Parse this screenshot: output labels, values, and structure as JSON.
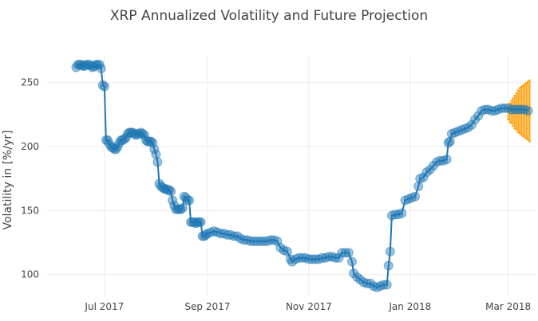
{
  "chart_data": {
    "type": "scatter",
    "title": "XRP Annualized Volatility and Future Projection",
    "xlabel": "",
    "ylabel": "Volatility in [%/yr]",
    "y_ticks": [
      100,
      150,
      200,
      250
    ],
    "ylim": [
      83,
      271
    ],
    "xlim": [
      "2017-05-27",
      "2018-03-18"
    ],
    "x_ticks": [
      {
        "date": "2017-07-01",
        "label": "Jul 2017"
      },
      {
        "date": "2017-09-01",
        "label": "Sep 2017"
      },
      {
        "date": "2017-11-01",
        "label": "Nov 2017"
      },
      {
        "date": "2018-01-01",
        "label": "Jan 2018"
      },
      {
        "date": "2018-03-01",
        "label": "Mar 2018"
      }
    ],
    "grid": true,
    "legend": "none",
    "colors": {
      "series": "#1f77b4",
      "projection": "#ff9f0a"
    },
    "series": [
      {
        "type": "line+markers",
        "points": [
          [
            "2017-06-14",
            262
          ],
          [
            "2017-06-15",
            264
          ],
          [
            "2017-06-16",
            264
          ],
          [
            "2017-06-17",
            264
          ],
          [
            "2017-06-18",
            263
          ],
          [
            "2017-06-19",
            263
          ],
          [
            "2017-06-20",
            264
          ],
          [
            "2017-06-21",
            264
          ],
          [
            "2017-06-22",
            264
          ],
          [
            "2017-06-23",
            263
          ],
          [
            "2017-06-24",
            262
          ],
          [
            "2017-06-25",
            263
          ],
          [
            "2017-06-26",
            264
          ],
          [
            "2017-06-27",
            264
          ],
          [
            "2017-06-28",
            264
          ],
          [
            "2017-06-29",
            261
          ],
          [
            "2017-06-30",
            248
          ],
          [
            "2017-07-01",
            247
          ],
          [
            "2017-07-02",
            205
          ],
          [
            "2017-07-03",
            205
          ],
          [
            "2017-07-04",
            202
          ],
          [
            "2017-07-05",
            200
          ],
          [
            "2017-07-06",
            199
          ],
          [
            "2017-07-07",
            198
          ],
          [
            "2017-07-08",
            198
          ],
          [
            "2017-07-09",
            200
          ],
          [
            "2017-07-10",
            203
          ],
          [
            "2017-07-11",
            205
          ],
          [
            "2017-07-12",
            205
          ],
          [
            "2017-07-13",
            206
          ],
          [
            "2017-07-14",
            207
          ],
          [
            "2017-07-15",
            210
          ],
          [
            "2017-07-16",
            211
          ],
          [
            "2017-07-17",
            211
          ],
          [
            "2017-07-18",
            211
          ],
          [
            "2017-07-19",
            210
          ],
          [
            "2017-07-20",
            209
          ],
          [
            "2017-07-21",
            210
          ],
          [
            "2017-07-22",
            210
          ],
          [
            "2017-07-23",
            211
          ],
          [
            "2017-07-24",
            210
          ],
          [
            "2017-07-25",
            209
          ],
          [
            "2017-07-26",
            205
          ],
          [
            "2017-07-27",
            204
          ],
          [
            "2017-07-28",
            204
          ],
          [
            "2017-07-29",
            204
          ],
          [
            "2017-07-30",
            203
          ],
          [
            "2017-07-31",
            198
          ],
          [
            "2017-08-01",
            194
          ],
          [
            "2017-08-02",
            188
          ],
          [
            "2017-08-03",
            171
          ],
          [
            "2017-08-04",
            169
          ],
          [
            "2017-08-05",
            168
          ],
          [
            "2017-08-06",
            167
          ],
          [
            "2017-08-07",
            167
          ],
          [
            "2017-08-08",
            166
          ],
          [
            "2017-08-09",
            166
          ],
          [
            "2017-08-10",
            165
          ],
          [
            "2017-08-11",
            158
          ],
          [
            "2017-08-12",
            154
          ],
          [
            "2017-08-13",
            151
          ],
          [
            "2017-08-14",
            151
          ],
          [
            "2017-08-15",
            151
          ],
          [
            "2017-08-16",
            151
          ],
          [
            "2017-08-17",
            152
          ],
          [
            "2017-08-18",
            161
          ],
          [
            "2017-08-19",
            160
          ],
          [
            "2017-08-20",
            158
          ],
          [
            "2017-08-21",
            158
          ],
          [
            "2017-08-22",
            141
          ],
          [
            "2017-08-23",
            141
          ],
          [
            "2017-08-24",
            141
          ],
          [
            "2017-08-25",
            140
          ],
          [
            "2017-08-26",
            141
          ],
          [
            "2017-08-27",
            141
          ],
          [
            "2017-08-28",
            141
          ],
          [
            "2017-08-29",
            130
          ],
          [
            "2017-08-30",
            130
          ],
          [
            "2017-08-31",
            131
          ],
          [
            "2017-09-01",
            132
          ],
          [
            "2017-09-03",
            133
          ],
          [
            "2017-09-05",
            134
          ],
          [
            "2017-09-07",
            133
          ],
          [
            "2017-09-09",
            132
          ],
          [
            "2017-09-11",
            132
          ],
          [
            "2017-09-13",
            131
          ],
          [
            "2017-09-15",
            131
          ],
          [
            "2017-09-17",
            130
          ],
          [
            "2017-09-19",
            130
          ],
          [
            "2017-09-21",
            128
          ],
          [
            "2017-09-23",
            127
          ],
          [
            "2017-09-25",
            127
          ],
          [
            "2017-09-27",
            126
          ],
          [
            "2017-09-29",
            126
          ],
          [
            "2017-10-01",
            126
          ],
          [
            "2017-10-03",
            126
          ],
          [
            "2017-10-05",
            126
          ],
          [
            "2017-10-07",
            126
          ],
          [
            "2017-10-09",
            127
          ],
          [
            "2017-10-11",
            127
          ],
          [
            "2017-10-13",
            126
          ],
          [
            "2017-10-15",
            121
          ],
          [
            "2017-10-17",
            119
          ],
          [
            "2017-10-19",
            118
          ],
          [
            "2017-10-21",
            112
          ],
          [
            "2017-10-22",
            110
          ],
          [
            "2017-10-24",
            112
          ],
          [
            "2017-10-26",
            113
          ],
          [
            "2017-10-28",
            113
          ],
          [
            "2017-10-30",
            113
          ],
          [
            "2017-11-01",
            112
          ],
          [
            "2017-11-03",
            112
          ],
          [
            "2017-11-05",
            112
          ],
          [
            "2017-11-07",
            112
          ],
          [
            "2017-11-09",
            113
          ],
          [
            "2017-11-11",
            113
          ],
          [
            "2017-11-13",
            114
          ],
          [
            "2017-11-15",
            114
          ],
          [
            "2017-11-17",
            113
          ],
          [
            "2017-11-19",
            113
          ],
          [
            "2017-11-21",
            117
          ],
          [
            "2017-11-23",
            117
          ],
          [
            "2017-11-25",
            117
          ],
          [
            "2017-11-27",
            110
          ],
          [
            "2017-11-28",
            101
          ],
          [
            "2017-11-30",
            98
          ],
          [
            "2017-12-02",
            96
          ],
          [
            "2017-12-04",
            94
          ],
          [
            "2017-12-06",
            93
          ],
          [
            "2017-12-08",
            93
          ],
          [
            "2017-12-10",
            91
          ],
          [
            "2017-12-12",
            90
          ],
          [
            "2017-12-14",
            91
          ],
          [
            "2017-12-16",
            92
          ],
          [
            "2017-12-18",
            92
          ],
          [
            "2017-12-19",
            107
          ],
          [
            "2017-12-20",
            118
          ],
          [
            "2017-12-21",
            146
          ],
          [
            "2017-12-23",
            147
          ],
          [
            "2017-12-25",
            147
          ],
          [
            "2017-12-27",
            148
          ],
          [
            "2017-12-29",
            158
          ],
          [
            "2017-12-31",
            159
          ],
          [
            "2018-01-02",
            160
          ],
          [
            "2018-01-04",
            161
          ],
          [
            "2018-01-06",
            169
          ],
          [
            "2018-01-07",
            175
          ],
          [
            "2018-01-09",
            176
          ],
          [
            "2018-01-11",
            180
          ],
          [
            "2018-01-13",
            182
          ],
          [
            "2018-01-15",
            185
          ],
          [
            "2018-01-17",
            188
          ],
          [
            "2018-01-19",
            189
          ],
          [
            "2018-01-21",
            189
          ],
          [
            "2018-01-23",
            190
          ],
          [
            "2018-01-24",
            203
          ],
          [
            "2018-01-25",
            204
          ],
          [
            "2018-01-26",
            210
          ],
          [
            "2018-01-28",
            211
          ],
          [
            "2018-01-30",
            212
          ],
          [
            "2018-02-01",
            213
          ],
          [
            "2018-02-03",
            214
          ],
          [
            "2018-02-05",
            215
          ],
          [
            "2018-02-07",
            217
          ],
          [
            "2018-02-09",
            221
          ],
          [
            "2018-02-11",
            224
          ],
          [
            "2018-02-13",
            228
          ],
          [
            "2018-02-15",
            229
          ],
          [
            "2018-02-17",
            229
          ],
          [
            "2018-02-19",
            228
          ],
          [
            "2018-02-21",
            228
          ],
          [
            "2018-02-23",
            229
          ],
          [
            "2018-02-25",
            230
          ],
          [
            "2018-02-27",
            230
          ],
          [
            "2018-03-01",
            230
          ],
          [
            "2018-03-03",
            229
          ],
          [
            "2018-03-05",
            229
          ],
          [
            "2018-03-07",
            229
          ],
          [
            "2018-03-09",
            229
          ],
          [
            "2018-03-11",
            229
          ],
          [
            "2018-03-13",
            228
          ]
        ]
      },
      {
        "type": "projection-bars",
        "points": [
          [
            "2018-03-01",
            221,
            231
          ],
          [
            "2018-03-02",
            219,
            234
          ],
          [
            "2018-03-03",
            218,
            236
          ],
          [
            "2018-03-04",
            216,
            238
          ],
          [
            "2018-03-05",
            214,
            240
          ],
          [
            "2018-03-06",
            213,
            242
          ],
          [
            "2018-03-07",
            211,
            244
          ],
          [
            "2018-03-08",
            210,
            246
          ],
          [
            "2018-03-09",
            209,
            247
          ],
          [
            "2018-03-10",
            208,
            248
          ],
          [
            "2018-03-11",
            207,
            249
          ],
          [
            "2018-03-12",
            206,
            250
          ],
          [
            "2018-03-13",
            205,
            251
          ],
          [
            "2018-03-14",
            204,
            252
          ]
        ]
      }
    ]
  }
}
